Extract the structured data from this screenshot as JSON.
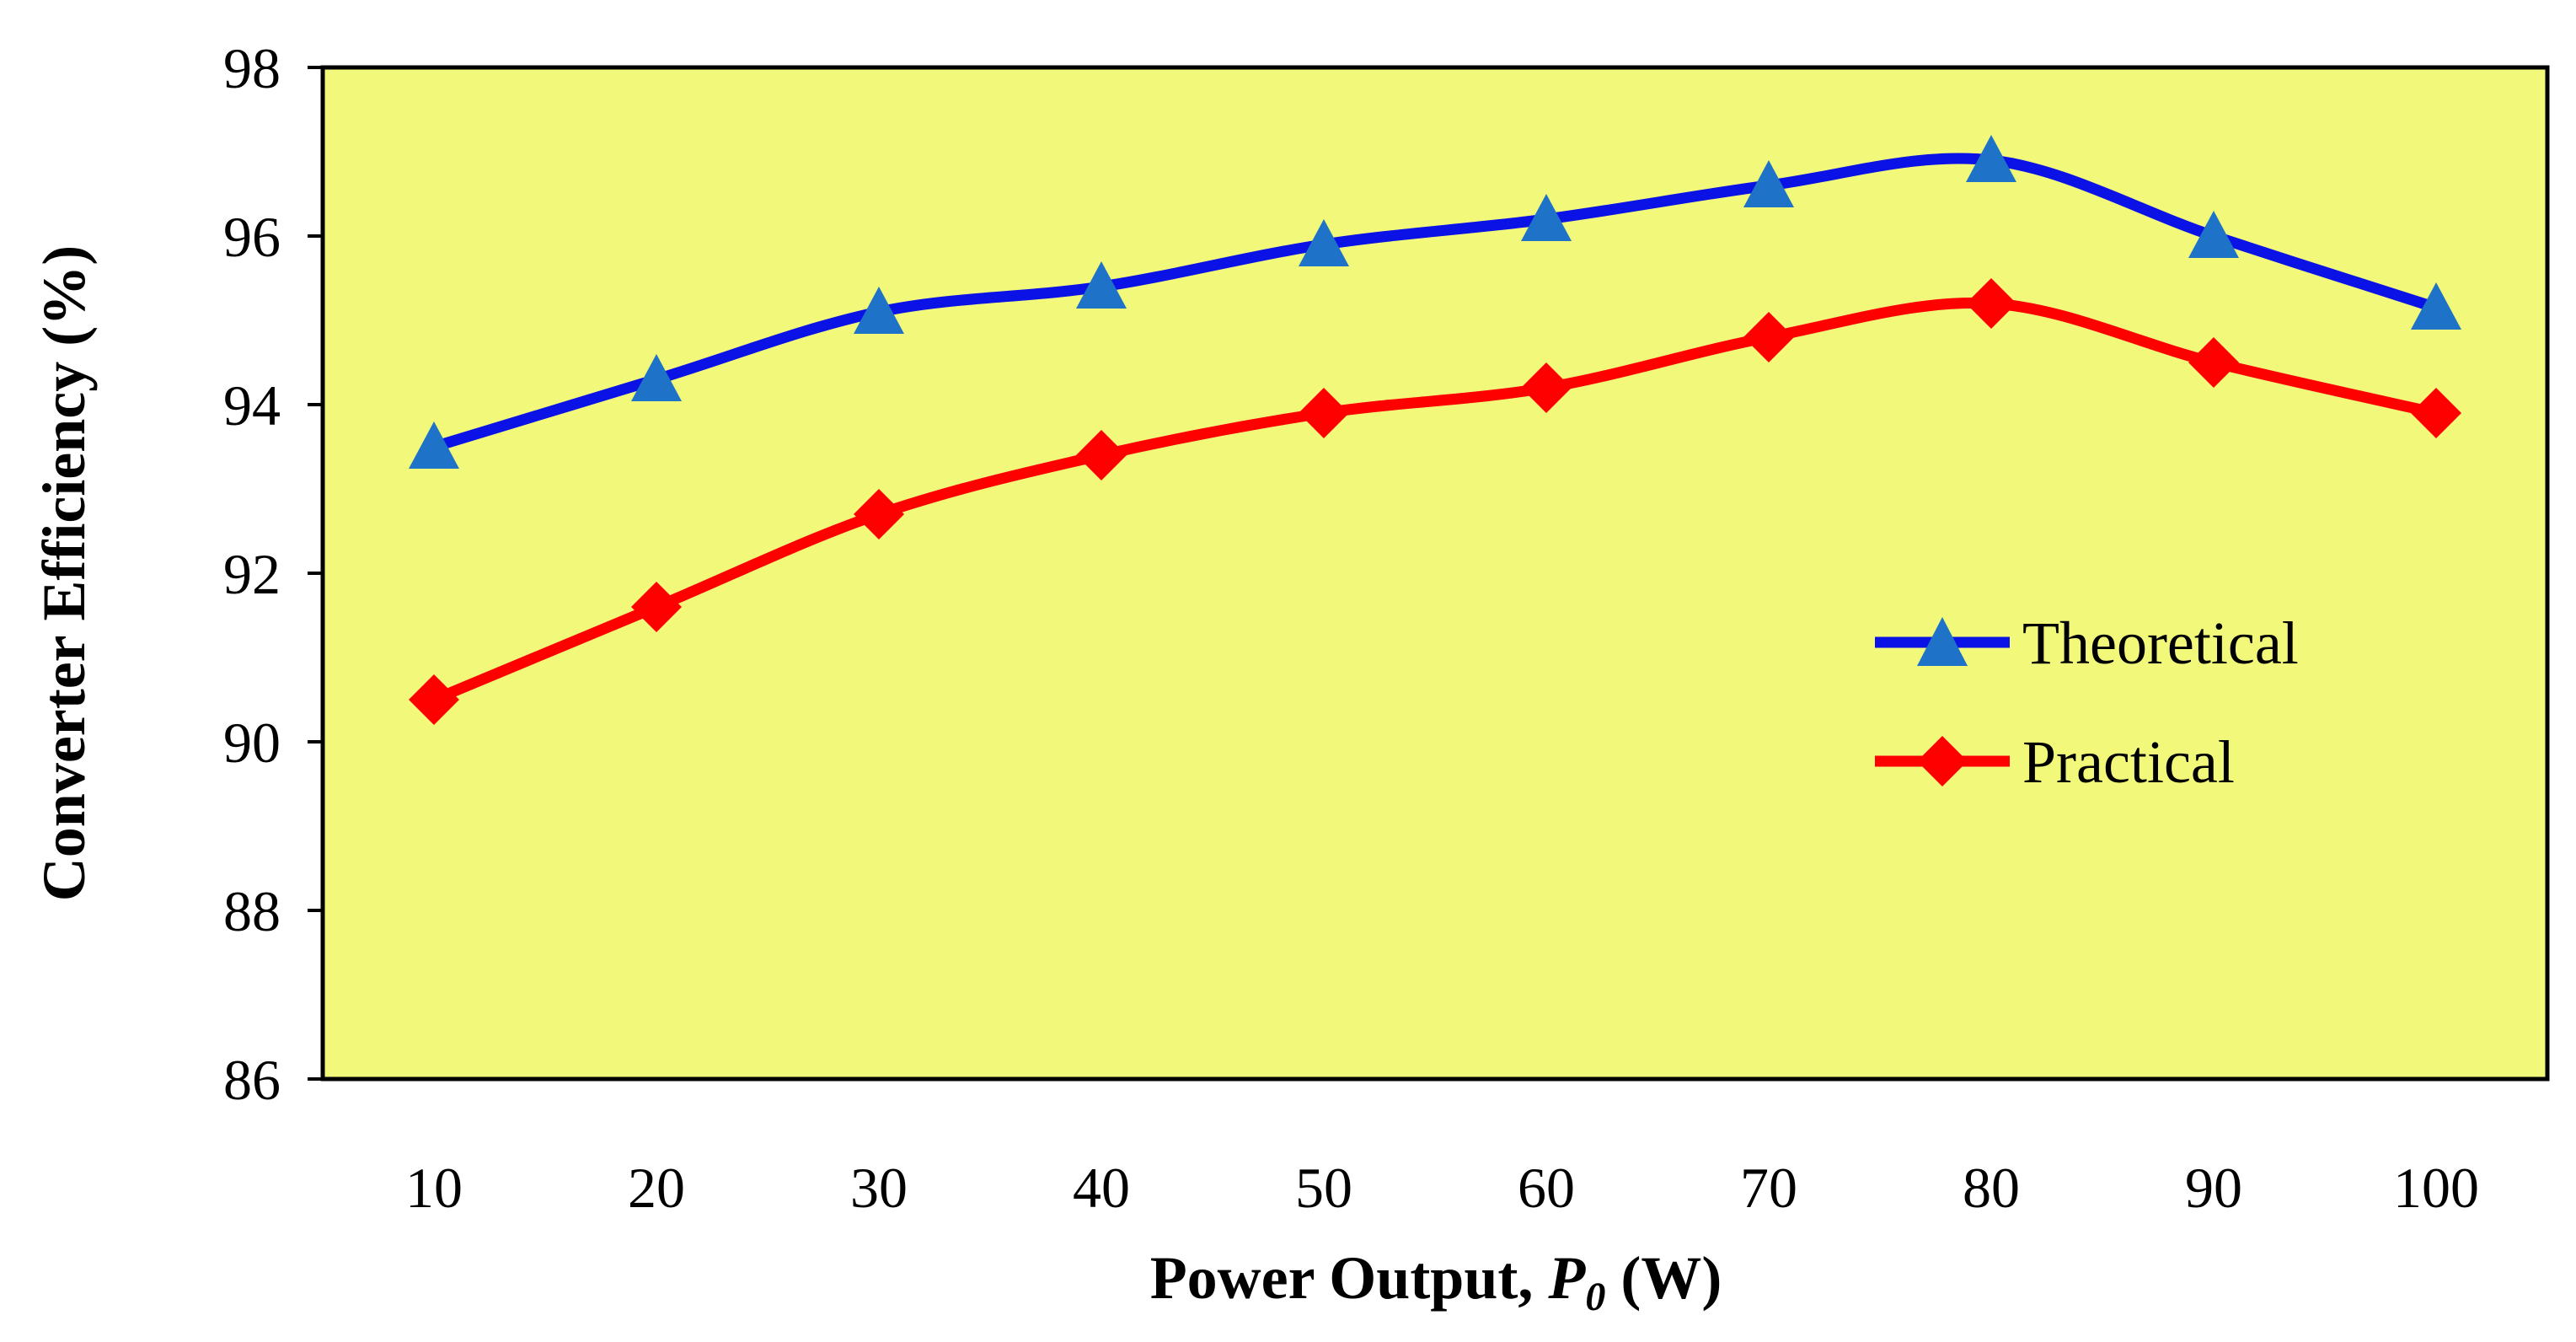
{
  "chart_data": {
    "type": "line",
    "title": "",
    "xlabel": {
      "main": "Power Output, ",
      "symbol": "P",
      "subscript": "0",
      "unit": " (W)"
    },
    "ylabel": "Converter Efficiency (%)",
    "categories": [
      "10",
      "20",
      "30",
      "40",
      "50",
      "60",
      "70",
      "80",
      "90",
      "100"
    ],
    "ylim": [
      86,
      98
    ],
    "yticks": [
      "86",
      "88",
      "90",
      "92",
      "94",
      "96",
      "98"
    ],
    "grid": false,
    "legend_position": "right-middle",
    "plot_background": "#F2F97A",
    "series": [
      {
        "name": "Theoretical",
        "values": [
          93.5,
          94.3,
          95.1,
          95.4,
          95.9,
          96.2,
          96.6,
          96.9,
          96.0,
          95.15
        ],
        "line_color": "#0A12E6",
        "marker": "triangle",
        "marker_color": "#1E73C8"
      },
      {
        "name": "Practical",
        "values": [
          90.5,
          91.6,
          92.7,
          93.4,
          93.9,
          94.2,
          94.8,
          95.2,
          94.5,
          93.9
        ],
        "line_color": "#FF0000",
        "marker": "diamond",
        "marker_color": "#FF0000"
      }
    ]
  }
}
